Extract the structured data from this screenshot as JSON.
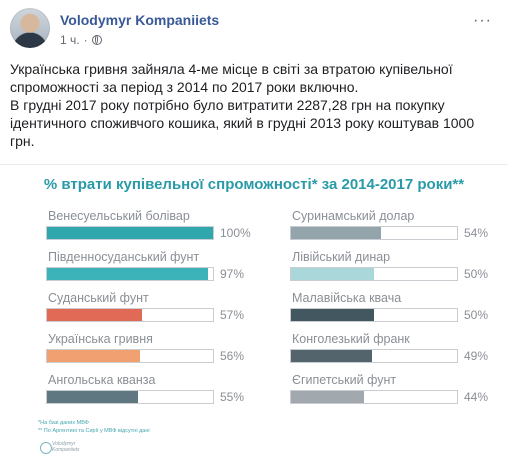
{
  "post": {
    "author": "Volodymyr Kompaniiets",
    "time": "1 ч.",
    "dot": "·",
    "more": "···",
    "text": [
      "Українська гривня зайняла 4-ме місце в світі за втратою купівельної спроможності за період з 2014 по 2017 роки включно.",
      "В грудні 2017 року потрібно було витратити 2287,28 грн на покупку ідентичного споживчого кошика, який в грудні 2013 року коштував 1000 грн."
    ]
  },
  "infographic": {
    "footnotes": [
      "*На базі даних МВФ",
      "** По Аргентині та Сирії у МВФ відсутні дані"
    ],
    "signature": [
      "Volodymyr",
      "Kompaniiets"
    ]
  },
  "chart_data": {
    "type": "bar",
    "title": "% втрати купівельної спроможності* за 2014-2017 роки**",
    "value_max": 100,
    "columns": [
      {
        "categories": [
          "Венесуельський болівар",
          "Південносуданський фунт",
          "Суданський фунт",
          "Українська гривня",
          "Ангольська кванза"
        ],
        "values": [
          100,
          97,
          57,
          56,
          55
        ],
        "labels": [
          "100%",
          "97%",
          "57%",
          "56%",
          "55%"
        ],
        "colors": [
          "#2fa7ad",
          "#3bb3b8",
          "#e06a56",
          "#f0a071",
          "#5f7781"
        ]
      },
      {
        "categories": [
          "Суринамський долар",
          "Лівійський динар",
          "Малавійська квача",
          "Конголезький франк",
          "Єгипетський фунт"
        ],
        "values": [
          54,
          50,
          50,
          49,
          44
        ],
        "labels": [
          "54%",
          "50%",
          "50%",
          "49%",
          "44%"
        ],
        "colors": [
          "#94a4ab",
          "#a9d7da",
          "#435761",
          "#53646c",
          "#a1a9ae"
        ]
      }
    ]
  }
}
